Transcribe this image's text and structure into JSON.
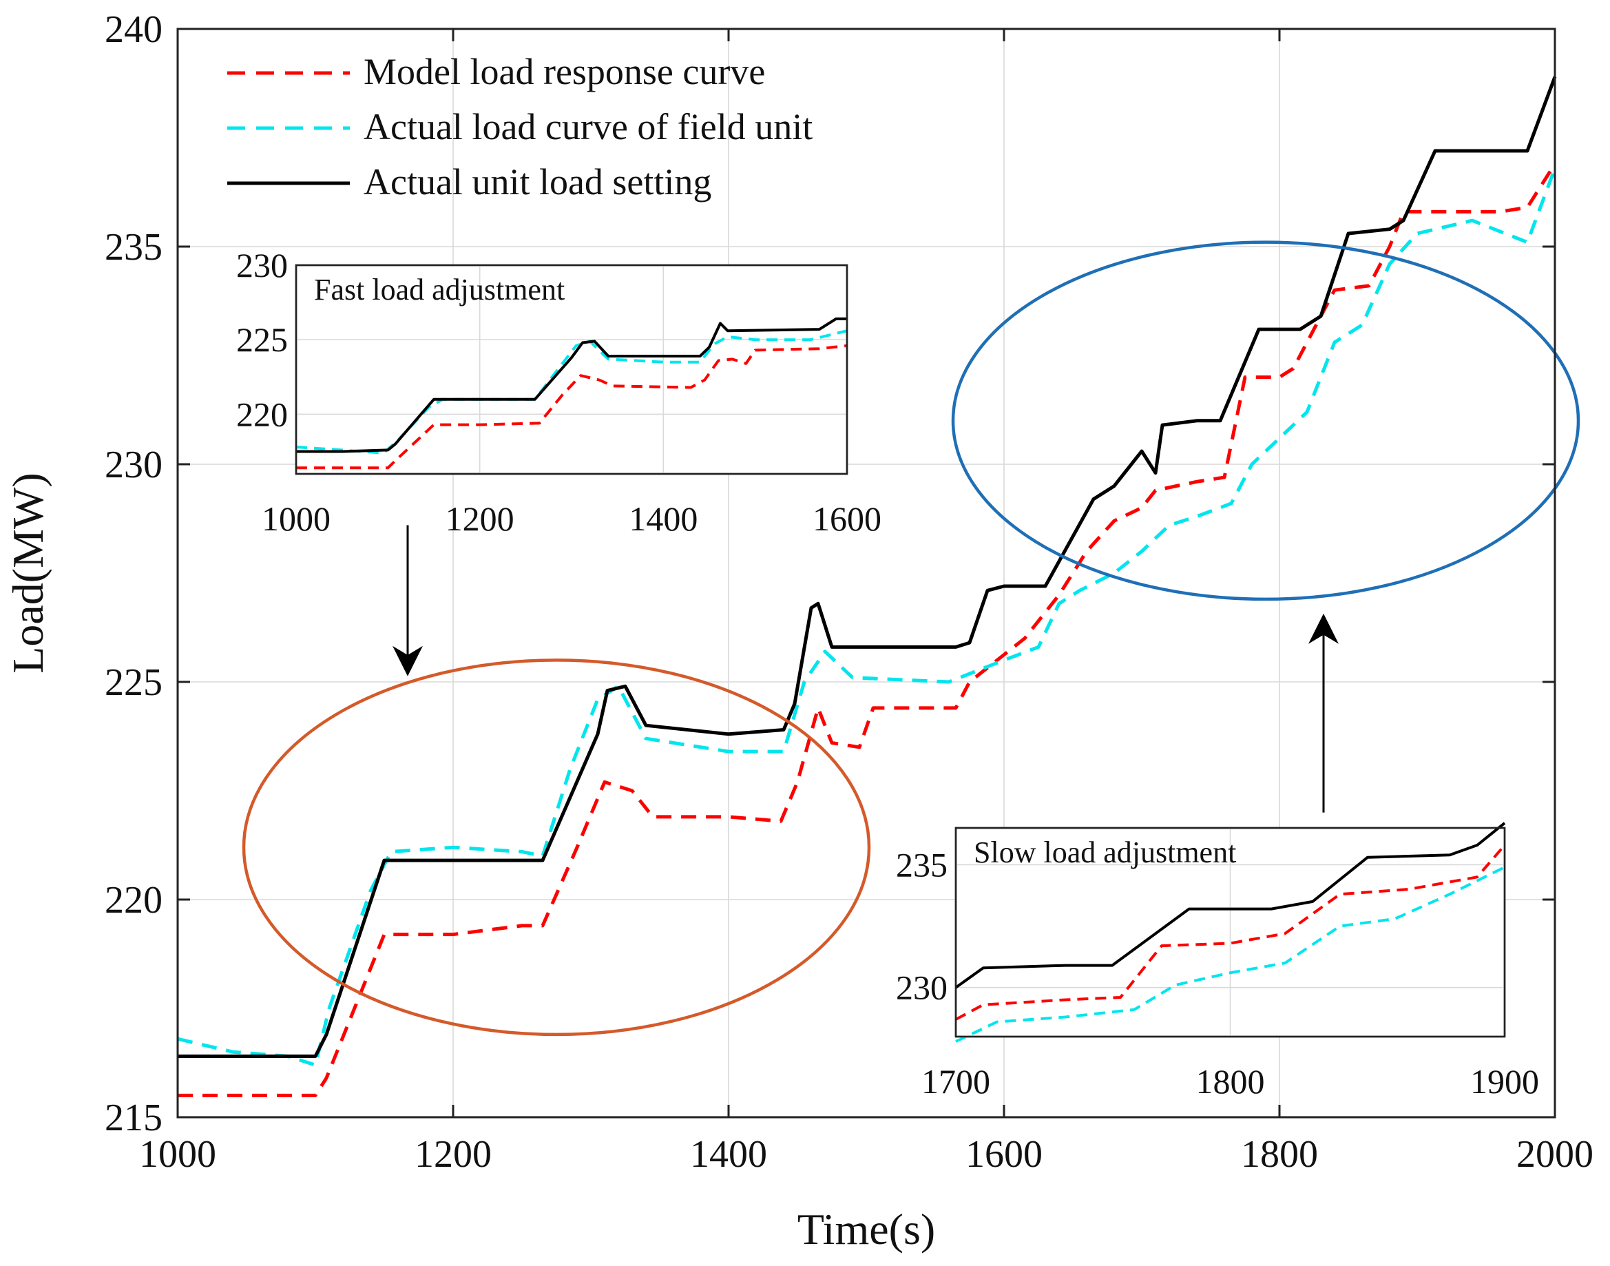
{
  "chart_data": {
    "type": "line",
    "title": "",
    "xlabel": "Time(s)",
    "ylabel": "Load(MW)",
    "xlim": [
      1000,
      2000
    ],
    "ylim": [
      215,
      240
    ],
    "xticks": [
      1000,
      1200,
      1400,
      1600,
      1800,
      2000
    ],
    "yticks": [
      215,
      220,
      225,
      230,
      235,
      240
    ],
    "grid": true,
    "legend_position": "top-left",
    "series": [
      {
        "name": "Model load response curve",
        "color": "#ff0000",
        "style": "dashed",
        "points": [
          [
            1000,
            215.5
          ],
          [
            1100,
            215.5
          ],
          [
            1108,
            215.9
          ],
          [
            1150,
            219.2
          ],
          [
            1200,
            219.2
          ],
          [
            1250,
            219.4
          ],
          [
            1265,
            219.4
          ],
          [
            1290,
            221.2
          ],
          [
            1310,
            222.7
          ],
          [
            1330,
            222.5
          ],
          [
            1345,
            221.9
          ],
          [
            1400,
            221.9
          ],
          [
            1438,
            221.8
          ],
          [
            1450,
            222.7
          ],
          [
            1465,
            224.4
          ],
          [
            1475,
            223.6
          ],
          [
            1495,
            223.5
          ],
          [
            1505,
            224.4
          ],
          [
            1565,
            224.4
          ],
          [
            1575,
            225.0
          ],
          [
            1615,
            226.0
          ],
          [
            1640,
            227.0
          ],
          [
            1660,
            228.0
          ],
          [
            1680,
            228.7
          ],
          [
            1700,
            229.0
          ],
          [
            1710,
            229.4
          ],
          [
            1740,
            229.6
          ],
          [
            1760,
            229.7
          ],
          [
            1775,
            232.0
          ],
          [
            1800,
            232.0
          ],
          [
            1810,
            232.2
          ],
          [
            1840,
            234.0
          ],
          [
            1865,
            234.1
          ],
          [
            1880,
            235.0
          ],
          [
            1890,
            235.8
          ],
          [
            1960,
            235.8
          ],
          [
            1980,
            235.9
          ],
          [
            2000,
            236.9
          ]
        ]
      },
      {
        "name": "Actual load curve of field unit",
        "color": "#00e5ee",
        "style": "dashed",
        "points": [
          [
            1000,
            216.8
          ],
          [
            1040,
            216.5
          ],
          [
            1080,
            216.4
          ],
          [
            1100,
            216.2
          ],
          [
            1110,
            217.5
          ],
          [
            1140,
            220.2
          ],
          [
            1155,
            221.1
          ],
          [
            1200,
            221.2
          ],
          [
            1250,
            221.1
          ],
          [
            1265,
            221.0
          ],
          [
            1285,
            223.0
          ],
          [
            1305,
            224.6
          ],
          [
            1320,
            224.9
          ],
          [
            1340,
            223.7
          ],
          [
            1400,
            223.4
          ],
          [
            1440,
            223.4
          ],
          [
            1455,
            225.0
          ],
          [
            1470,
            225.7
          ],
          [
            1490,
            225.1
          ],
          [
            1560,
            225.0
          ],
          [
            1600,
            225.5
          ],
          [
            1625,
            225.8
          ],
          [
            1640,
            226.8
          ],
          [
            1655,
            227.1
          ],
          [
            1680,
            227.5
          ],
          [
            1700,
            228.0
          ],
          [
            1720,
            228.6
          ],
          [
            1740,
            228.8
          ],
          [
            1765,
            229.1
          ],
          [
            1780,
            230.0
          ],
          [
            1800,
            230.6
          ],
          [
            1820,
            231.2
          ],
          [
            1840,
            232.8
          ],
          [
            1860,
            233.2
          ],
          [
            1880,
            234.6
          ],
          [
            1900,
            235.3
          ],
          [
            1940,
            235.6
          ],
          [
            1980,
            235.1
          ],
          [
            2000,
            236.8
          ]
        ]
      },
      {
        "name": "Actual unit load setting",
        "color": "#000000",
        "style": "solid",
        "points": [
          [
            1000,
            216.4
          ],
          [
            1050,
            216.4
          ],
          [
            1100,
            216.4
          ],
          [
            1108,
            216.9
          ],
          [
            1150,
            220.9
          ],
          [
            1200,
            220.9
          ],
          [
            1265,
            220.9
          ],
          [
            1305,
            223.8
          ],
          [
            1312,
            224.8
          ],
          [
            1325,
            224.9
          ],
          [
            1340,
            224.0
          ],
          [
            1400,
            223.8
          ],
          [
            1440,
            223.9
          ],
          [
            1448,
            224.5
          ],
          [
            1460,
            226.7
          ],
          [
            1465,
            226.8
          ],
          [
            1475,
            225.8
          ],
          [
            1565,
            225.8
          ],
          [
            1575,
            225.9
          ],
          [
            1588,
            227.1
          ],
          [
            1600,
            227.2
          ],
          [
            1630,
            227.2
          ],
          [
            1665,
            229.2
          ],
          [
            1680,
            229.5
          ],
          [
            1700,
            230.3
          ],
          [
            1710,
            229.8
          ],
          [
            1715,
            230.9
          ],
          [
            1740,
            231.0
          ],
          [
            1757,
            231.0
          ],
          [
            1785,
            233.1
          ],
          [
            1815,
            233.1
          ],
          [
            1830,
            233.4
          ],
          [
            1850,
            235.3
          ],
          [
            1880,
            235.4
          ],
          [
            1890,
            235.6
          ],
          [
            1913,
            237.2
          ],
          [
            1960,
            237.2
          ],
          [
            1980,
            237.2
          ],
          [
            2000,
            238.9
          ]
        ]
      }
    ],
    "annotations": [
      {
        "type": "ellipse",
        "color": "#d45a2a",
        "center": [
          1275,
          221.2
        ],
        "radii": [
          227,
          4.3
        ]
      },
      {
        "type": "ellipse",
        "color": "#1f6fb6",
        "center": [
          1790,
          231.0
        ],
        "radii": [
          227,
          4.1
        ]
      },
      {
        "type": "arrow",
        "direction": "down",
        "from": [
          1167,
          228.6
        ],
        "to": [
          1167,
          225.2
        ]
      },
      {
        "type": "arrow",
        "direction": "up",
        "from": [
          1832,
          222.0
        ],
        "to": [
          1832,
          226.5
        ]
      }
    ],
    "insets": [
      {
        "title": "Fast load adjustment",
        "xlim": [
          1000,
          1600
        ],
        "ylim": [
          216,
          230
        ],
        "xticks": [
          1000,
          1200,
          1400,
          1600
        ],
        "yticks": [
          220,
          225,
          230
        ],
        "series": [
          {
            "name": "Model load response curve",
            "color": "#ff0000",
            "style": "dashed",
            "points": [
              [
                1000,
                216.4
              ],
              [
                1100,
                216.4
              ],
              [
                1110,
                217.0
              ],
              [
                1150,
                219.3
              ],
              [
                1200,
                219.3
              ],
              [
                1265,
                219.4
              ],
              [
                1290,
                221.3
              ],
              [
                1310,
                222.6
              ],
              [
                1330,
                222.3
              ],
              [
                1345,
                221.9
              ],
              [
                1430,
                221.8
              ],
              [
                1445,
                222.3
              ],
              [
                1460,
                223.6
              ],
              [
                1475,
                223.7
              ],
              [
                1490,
                223.4
              ],
              [
                1500,
                224.3
              ],
              [
                1570,
                224.4
              ],
              [
                1600,
                224.6
              ]
            ]
          },
          {
            "name": "Actual load curve of field unit",
            "color": "#00e5ee",
            "style": "dashed",
            "points": [
              [
                1000,
                217.8
              ],
              [
                1050,
                217.6
              ],
              [
                1095,
                217.4
              ],
              [
                1110,
                218.2
              ],
              [
                1145,
                220.5
              ],
              [
                1160,
                221.0
              ],
              [
                1200,
                221.0
              ],
              [
                1260,
                221.0
              ],
              [
                1285,
                223.0
              ],
              [
                1305,
                224.6
              ],
              [
                1320,
                224.9
              ],
              [
                1340,
                223.7
              ],
              [
                1400,
                223.5
              ],
              [
                1440,
                223.5
              ],
              [
                1455,
                224.7
              ],
              [
                1470,
                225.2
              ],
              [
                1500,
                225.0
              ],
              [
                1560,
                225.0
              ],
              [
                1600,
                225.6
              ]
            ]
          },
          {
            "name": "Actual unit load setting",
            "color": "#000000",
            "style": "solid",
            "points": [
              [
                1000,
                217.5
              ],
              [
                1050,
                217.5
              ],
              [
                1100,
                217.6
              ],
              [
                1108,
                218.0
              ],
              [
                1150,
                221.0
              ],
              [
                1260,
                221.0
              ],
              [
                1300,
                223.8
              ],
              [
                1312,
                224.8
              ],
              [
                1325,
                224.9
              ],
              [
                1340,
                223.9
              ],
              [
                1440,
                223.9
              ],
              [
                1450,
                224.5
              ],
              [
                1462,
                226.1
              ],
              [
                1470,
                225.6
              ],
              [
                1570,
                225.7
              ],
              [
                1588,
                226.4
              ],
              [
                1600,
                226.4
              ]
            ]
          }
        ]
      },
      {
        "title": "Slow load adjustment",
        "xlim": [
          1700,
          1900
        ],
        "ylim": [
          228,
          236.5
        ],
        "xticks": [
          1700,
          1800,
          1900
        ],
        "yticks": [
          230,
          235
        ],
        "series": [
          {
            "name": "Model load response curve",
            "color": "#ff0000",
            "style": "dashed",
            "points": [
              [
                1700,
                228.7
              ],
              [
                1710,
                229.3
              ],
              [
                1740,
                229.5
              ],
              [
                1760,
                229.6
              ],
              [
                1775,
                231.7
              ],
              [
                1800,
                231.8
              ],
              [
                1820,
                232.2
              ],
              [
                1840,
                233.8
              ],
              [
                1865,
                234.0
              ],
              [
                1880,
                234.3
              ],
              [
                1890,
                234.5
              ],
              [
                1900,
                235.8
              ]
            ]
          },
          {
            "name": "Actual load curve of field unit",
            "color": "#00e5ee",
            "style": "dashed",
            "points": [
              [
                1700,
                227.8
              ],
              [
                1715,
                228.6
              ],
              [
                1740,
                228.8
              ],
              [
                1765,
                229.1
              ],
              [
                1780,
                230.1
              ],
              [
                1800,
                230.6
              ],
              [
                1820,
                231.0
              ],
              [
                1840,
                232.5
              ],
              [
                1860,
                232.8
              ],
              [
                1880,
                233.8
              ],
              [
                1900,
                234.9
              ]
            ]
          },
          {
            "name": "Actual unit load setting",
            "color": "#000000",
            "style": "solid",
            "points": [
              [
                1700,
                230.0
              ],
              [
                1710,
                230.8
              ],
              [
                1740,
                230.9
              ],
              [
                1757,
                230.9
              ],
              [
                1785,
                233.2
              ],
              [
                1815,
                233.2
              ],
              [
                1830,
                233.5
              ],
              [
                1850,
                235.3
              ],
              [
                1880,
                235.4
              ],
              [
                1890,
                235.8
              ],
              [
                1900,
                236.7
              ]
            ]
          }
        ]
      }
    ]
  }
}
